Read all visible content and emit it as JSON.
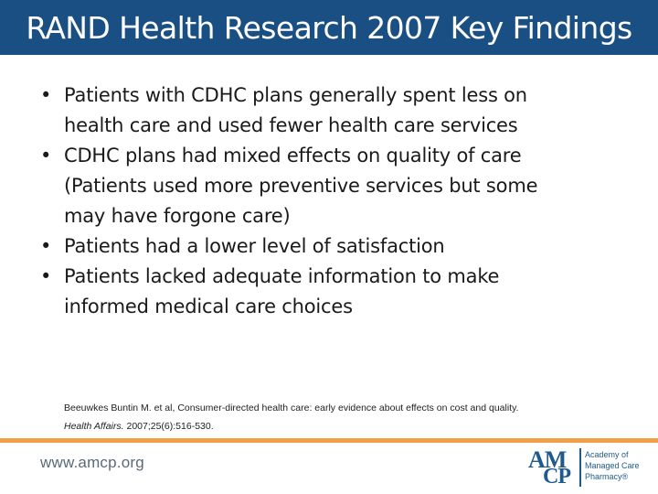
{
  "slide": {
    "title": "RAND Health Research 2007 Key Findings",
    "bullets": [
      {
        "lines": [
          "Patients with CDHC plans generally spent less on",
          "health care and used fewer health care services"
        ]
      },
      {
        "lines": [
          "CDHC plans had mixed effects on quality of care",
          "(Patients used more preventive services but some",
          "may have forgone care)"
        ]
      },
      {
        "lines": [
          "Patients had a lower level of satisfaction"
        ]
      },
      {
        "lines": [
          "Patients lacked adequate information to make",
          "informed medical care choices"
        ]
      }
    ],
    "bullet_marker": "•",
    "citation": {
      "line1": "Beeuwkes Buntin M. et al, Consumer-directed health care: early evidence about effects on cost and quality.",
      "journal": "Health Affairs.",
      "details": " 2007;25(6):516-530."
    }
  },
  "footer": {
    "url": "www.amcp.org",
    "logo": {
      "letters_top": "AM",
      "letters_bottom": "CP",
      "name_lines": [
        "Academy of",
        "Managed Care",
        "Pharmacy®"
      ]
    }
  },
  "colors": {
    "title_bar": "#1a4f83",
    "accent_rule": "#f0a048",
    "logo": "#1f5a8f"
  }
}
